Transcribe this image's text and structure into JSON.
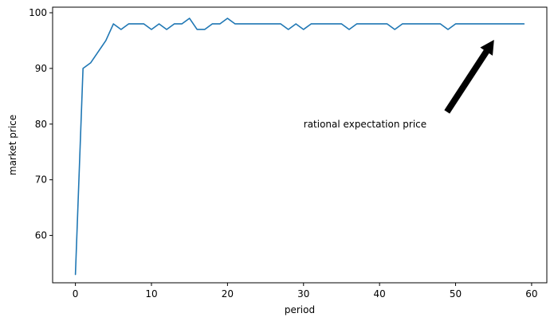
{
  "chart_data": {
    "type": "line",
    "title": "",
    "xlabel": "period",
    "ylabel": "market price",
    "xlim": [
      -3,
      62
    ],
    "ylim": [
      51.5,
      101
    ],
    "xticks": [
      0,
      10,
      20,
      30,
      40,
      50,
      60
    ],
    "yticks": [
      60,
      70,
      80,
      90,
      100
    ],
    "xtick_labels": [
      "0",
      "10",
      "20",
      "30",
      "40",
      "50",
      "60"
    ],
    "ytick_labels": [
      "60",
      "70",
      "80",
      "90",
      "100"
    ],
    "grid": false,
    "series": [
      {
        "color": "#1f77b4",
        "x": [
          0,
          1,
          2,
          3,
          4,
          5,
          6,
          7,
          8,
          9,
          10,
          11,
          12,
          13,
          14,
          15,
          16,
          17,
          18,
          19,
          20,
          21,
          22,
          23,
          24,
          25,
          26,
          27,
          28,
          29,
          30,
          31,
          32,
          33,
          34,
          35,
          36,
          37,
          38,
          39,
          40,
          41,
          42,
          43,
          44,
          45,
          46,
          47,
          48,
          49,
          50,
          51,
          52,
          53,
          54,
          55,
          56,
          57,
          58,
          59
        ],
        "values": [
          53,
          90,
          91,
          93,
          95,
          98,
          97,
          98,
          98,
          98,
          97,
          98,
          97,
          98,
          98,
          99,
          97,
          97,
          98,
          98,
          99,
          98,
          98,
          98,
          98,
          98,
          98,
          98,
          97,
          98,
          97,
          98,
          98,
          98,
          98,
          98,
          97,
          98,
          98,
          98,
          98,
          98,
          97,
          98,
          98,
          98,
          98,
          98,
          98,
          97,
          98,
          98,
          98,
          98,
          98,
          98,
          98,
          98,
          98,
          98
        ]
      }
    ],
    "annotations": [
      {
        "text": "rational expectation price",
        "text_x": 30,
        "text_y": 80,
        "arrow_to_x": 55,
        "arrow_to_y": 95,
        "arrow_color": "#000000"
      }
    ]
  }
}
